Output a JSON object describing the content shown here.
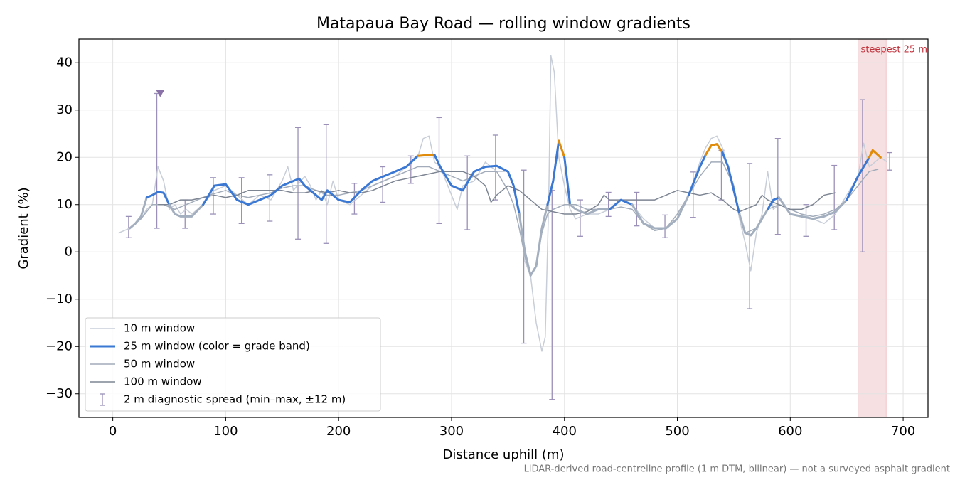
{
  "chart_data": {
    "type": "line",
    "title": "Matapaua Bay Road — rolling window gradients",
    "xlabel": "Distance uphill (m)",
    "ylabel": "Gradient (%)",
    "footnote": "LiDAR-derived road-centreline profile (1 m DTM, bilinear) — not a surveyed asphalt gradient",
    "xlim": [
      -30,
      722
    ],
    "ylim": [
      -35,
      45
    ],
    "xticks": [
      0,
      100,
      200,
      300,
      400,
      500,
      600,
      700
    ],
    "yticks": [
      {
        "value": -30,
        "label": "−30"
      },
      {
        "value": -20,
        "label": "−20"
      },
      {
        "value": -10,
        "label": "−10"
      },
      0,
      10,
      20,
      30,
      40
    ],
    "grid": true,
    "legend": "lower left",
    "series": [
      {
        "name": "10 m window",
        "color": "#c8ced8",
        "x": [
          5,
          10,
          15,
          20,
          25,
          30,
          35,
          40,
          45,
          50,
          55,
          60,
          65,
          70,
          75,
          80,
          90,
          100,
          110,
          120,
          130,
          140,
          150,
          155,
          160,
          170,
          175,
          180,
          185,
          190,
          195,
          200,
          210,
          220,
          230,
          240,
          250,
          260,
          270,
          275,
          280,
          285,
          290,
          295,
          300,
          305,
          310,
          320,
          330,
          340,
          350,
          355,
          360,
          365,
          370,
          375,
          380,
          383,
          386,
          388,
          391,
          395,
          400,
          405,
          410,
          420,
          430,
          440,
          450,
          460,
          470,
          480,
          490,
          500,
          510,
          520,
          525,
          530,
          535,
          540,
          545,
          550,
          555,
          560,
          565,
          570,
          575,
          580,
          585,
          590,
          600,
          610,
          620,
          630,
          640,
          650,
          660,
          665,
          670,
          680,
          686
        ],
        "values": [
          4,
          4.5,
          5,
          6,
          7,
          9,
          10,
          18,
          15,
          9,
          10,
          8,
          9,
          8,
          9,
          10,
          13,
          14,
          12,
          10,
          12,
          11,
          15,
          18,
          13,
          16,
          14,
          11,
          13,
          10,
          15,
          11,
          10,
          12,
          14,
          15,
          16,
          18,
          20,
          24,
          24.5,
          19,
          18,
          15,
          12,
          9,
          14,
          15,
          19,
          17,
          17,
          14,
          9,
          -2,
          -5,
          -15,
          -21,
          -18,
          10,
          41.5,
          38,
          20,
          14,
          9,
          7,
          8,
          8,
          9,
          11,
          10,
          7,
          5,
          5,
          7,
          12,
          19,
          22,
          24,
          24.5,
          22,
          18,
          14,
          7,
          2,
          -4,
          4,
          8,
          17,
          9,
          10,
          9,
          8,
          7,
          6,
          8,
          12,
          16,
          23,
          18,
          20,
          19
        ]
      },
      {
        "name": "25 m window (color = grade band)",
        "color": "#3a78d4",
        "grade_bands": [
          {
            "upto": 10,
            "color": "#a3afbe"
          },
          {
            "upto": 20,
            "color": "#3a78d4"
          },
          {
            "color": "#e08c0a"
          }
        ],
        "x": [
          15,
          20,
          25,
          30,
          35,
          40,
          45,
          50,
          55,
          60,
          70,
          80,
          90,
          100,
          110,
          120,
          130,
          140,
          150,
          160,
          165,
          170,
          180,
          185,
          190,
          200,
          210,
          220,
          230,
          240,
          250,
          260,
          270,
          280,
          285,
          290,
          300,
          310,
          320,
          330,
          340,
          350,
          355,
          360,
          365,
          370,
          375,
          380,
          385,
          390,
          395,
          400,
          405,
          410,
          420,
          430,
          440,
          450,
          460,
          470,
          480,
          490,
          500,
          510,
          520,
          525,
          530,
          535,
          540,
          545,
          550,
          555,
          560,
          565,
          570,
          580,
          585,
          590,
          600,
          610,
          620,
          630,
          640,
          650,
          660,
          670,
          673,
          680
        ],
        "values": [
          5,
          6,
          7.5,
          11.5,
          12,
          12.7,
          12.5,
          10,
          8,
          7.5,
          7.5,
          10,
          14,
          14.3,
          11,
          10,
          11,
          12,
          14,
          15,
          15.5,
          14,
          12,
          11,
          13,
          11,
          10.5,
          13,
          15,
          16,
          17,
          18,
          20.3,
          20.5,
          20.5,
          18,
          14,
          13,
          17,
          18,
          18.2,
          17,
          14,
          8,
          0,
          -5,
          -3,
          5,
          10,
          15,
          23.5,
          20,
          10,
          9,
          8,
          9,
          9,
          11,
          10,
          6,
          5,
          5,
          7,
          12,
          18,
          20.5,
          22.5,
          22.8,
          21,
          18,
          13,
          8,
          4,
          3.5,
          5,
          9,
          11,
          11.5,
          8,
          7.5,
          7,
          7.5,
          8.5,
          11,
          16,
          20,
          21.5,
          20
        ]
      },
      {
        "name": "50 m window",
        "color": "#a2acba",
        "x": [
          15,
          25,
          35,
          45,
          55,
          65,
          75,
          85,
          100,
          110,
          120,
          130,
          140,
          150,
          160,
          170,
          180,
          190,
          200,
          210,
          220,
          230,
          240,
          250,
          260,
          270,
          280,
          290,
          300,
          310,
          320,
          330,
          340,
          350,
          355,
          360,
          365,
          370,
          375,
          380,
          385,
          390,
          400,
          410,
          420,
          430,
          440,
          450,
          460,
          470,
          480,
          490,
          500,
          510,
          520,
          530,
          540,
          550,
          555,
          560,
          570,
          580,
          590,
          600,
          610,
          620,
          630,
          640,
          650,
          660,
          670,
          678
        ],
        "values": [
          5,
          7,
          10,
          10,
          9,
          10,
          11,
          12,
          13,
          12,
          11.5,
          12,
          12.5,
          13.5,
          14,
          14,
          13,
          12,
          12,
          12.5,
          13,
          14,
          15,
          16,
          17,
          18,
          18,
          17,
          16,
          15,
          16,
          17,
          17,
          13,
          10,
          5,
          -1,
          -5,
          -3,
          4,
          8,
          9,
          10,
          10,
          9,
          9,
          9,
          9.5,
          9,
          6,
          4.5,
          5,
          8,
          12,
          16,
          19,
          19,
          14,
          8,
          4,
          5,
          9,
          10,
          9,
          8,
          7.5,
          8,
          9,
          11,
          14,
          17,
          17.5
        ]
      },
      {
        "name": "100 m window",
        "color": "#7d8593",
        "x": [
          40,
          50,
          60,
          70,
          80,
          90,
          100,
          110,
          120,
          130,
          140,
          150,
          160,
          170,
          180,
          190,
          200,
          210,
          220,
          230,
          240,
          250,
          260,
          270,
          280,
          290,
          300,
          310,
          320,
          330,
          335,
          340,
          350,
          360,
          370,
          380,
          390,
          400,
          410,
          420,
          430,
          435,
          440,
          450,
          460,
          470,
          480,
          490,
          500,
          510,
          520,
          530,
          540,
          550,
          555,
          560,
          570,
          575,
          580,
          590,
          600,
          610,
          620,
          630,
          640
        ],
        "values": [
          10,
          10,
          11,
          11,
          11.5,
          12,
          11.5,
          12,
          13,
          13,
          13,
          13,
          12.5,
          12.5,
          13,
          12.5,
          13,
          12.5,
          12.5,
          13,
          14,
          15,
          15.5,
          16,
          16.5,
          17,
          17,
          17,
          16,
          14,
          10.5,
          12,
          14,
          13,
          11,
          9,
          8.5,
          8,
          8,
          8.5,
          10,
          12,
          11,
          11,
          11,
          11,
          11,
          12,
          13,
          12.5,
          12,
          12.5,
          11,
          9,
          8.5,
          9,
          10,
          12,
          11,
          10,
          9,
          9,
          10,
          12,
          12.5
        ]
      }
    ],
    "errorbars": {
      "name": "2 m diagnostic spread (min–max, ±12 m)",
      "color": "#9a90b8",
      "x": [
        14,
        39,
        64,
        89,
        114,
        139,
        164,
        189,
        214,
        239,
        264,
        289,
        314,
        339,
        364,
        389,
        414,
        439,
        464,
        489,
        514,
        539,
        564,
        589,
        614,
        639,
        664,
        688
      ],
      "lo": [
        3,
        5,
        5,
        8,
        6,
        6.5,
        2.7,
        1.8,
        8,
        10.5,
        14.5,
        6,
        4.7,
        11,
        -19.3,
        -31.2,
        3.3,
        7.5,
        5.5,
        3,
        7.3,
        11,
        -12,
        3.7,
        3.3,
        4.7,
        0,
        17.3
      ],
      "hi": [
        7.5,
        33.5,
        11,
        15.7,
        15.7,
        16.3,
        26.3,
        26.9,
        14.5,
        18,
        20.3,
        28.4,
        20.3,
        24.7,
        17.3,
        13,
        11,
        12.6,
        12.6,
        7.8,
        16.9,
        21.5,
        18.7,
        24,
        10,
        18.3,
        32.2,
        21
      ]
    },
    "max_marker": {
      "x": 42,
      "y": 33.5,
      "color": "#8a72a8"
    },
    "highlight": {
      "x": [
        660,
        685
      ],
      "label": "steepest 25 m",
      "color": "#e8a6ad",
      "text_color": "#c0303a"
    }
  }
}
